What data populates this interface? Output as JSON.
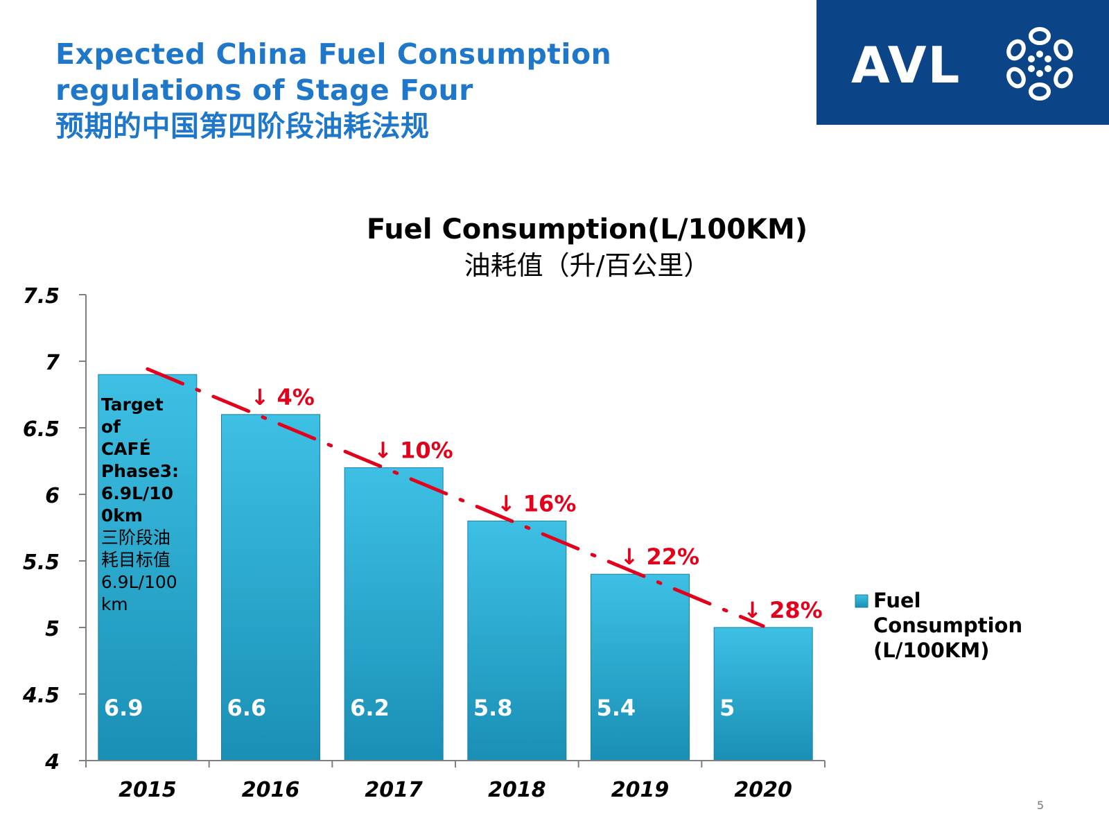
{
  "slide": {
    "title_lines": [
      "Expected China Fuel Consumption",
      "regulations of Stage Four",
      "预期的中国第四阶段油耗法规"
    ],
    "logo_text": "AVL",
    "page_number": "5"
  },
  "colors": {
    "title": "#1f77c9",
    "logo_bg": "#0b4587",
    "bar_top": "#3dc0e4",
    "bar_bottom": "#1a8fb5",
    "trend": "#e3001b"
  },
  "chart_data": {
    "type": "bar",
    "title": "Fuel Consumption(L/100KM)",
    "subtitle": "油耗值（升/百公里）",
    "categories": [
      "2015",
      "2016",
      "2017",
      "2018",
      "2019",
      "2020"
    ],
    "series": [
      {
        "name": "Fuel Consumption (L/100KM)",
        "values": [
          6.9,
          6.6,
          6.2,
          5.8,
          5.4,
          5
        ]
      }
    ],
    "data_labels": [
      "6.9",
      "6.6",
      "6.2",
      "5.8",
      "5.4",
      "5"
    ],
    "ylim": [
      4,
      7.5
    ],
    "yticks": [
      "4",
      "4.5",
      "5",
      "5.5",
      "6",
      "6.5",
      "7",
      "7.5"
    ],
    "grid": false,
    "legend": {
      "placement": "right",
      "lines": [
        "Fuel",
        "Consumption",
        "(L/100KM)"
      ]
    },
    "trendline": {
      "style": "dash-dot",
      "color": "#e3001b"
    },
    "reductions": [
      {
        "category": "2016",
        "label": "↓ 4%"
      },
      {
        "category": "2017",
        "label": "↓ 10%"
      },
      {
        "category": "2018",
        "label": "↓ 16%"
      },
      {
        "category": "2019",
        "label": "↓ 22%"
      },
      {
        "category": "2020",
        "label": "↓ 28%"
      }
    ],
    "annotation_lines": [
      "Target",
      "of",
      "CAFÉ",
      "Phase3:",
      "6.9L/10",
      "0km",
      "三阶段油",
      "耗目标值",
      "6.9L/100",
      "km"
    ]
  }
}
